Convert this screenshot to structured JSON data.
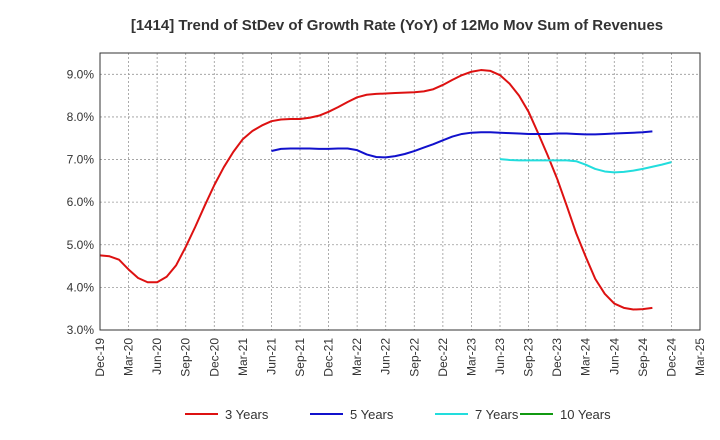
{
  "chart_data": {
    "type": "line",
    "title": "[1414]  Trend of StDev of Growth Rate (YoY) of 12Mo Mov Sum of Revenues",
    "xlabel": "",
    "ylabel": "",
    "ylim": [
      3.0,
      9.5
    ],
    "yticks": [
      3.0,
      4.0,
      5.0,
      6.0,
      7.0,
      8.0,
      9.0
    ],
    "ytick_labels": [
      "3.0%",
      "4.0%",
      "5.0%",
      "6.0%",
      "7.0%",
      "8.0%",
      "9.0%"
    ],
    "xticks": [
      "Dec-19",
      "Mar-20",
      "Jun-20",
      "Sep-20",
      "Dec-20",
      "Mar-21",
      "Jun-21",
      "Sep-21",
      "Dec-21",
      "Mar-22",
      "Jun-22",
      "Sep-22",
      "Dec-22",
      "Mar-23",
      "Jun-23",
      "Sep-23",
      "Dec-23",
      "Mar-24",
      "Jun-24",
      "Sep-24",
      "Dec-24",
      "Mar-25"
    ],
    "grid": true,
    "legend_position": "bottom",
    "series": [
      {
        "name": "3 Years",
        "color": "#dd1111",
        "start": 0,
        "values": [
          4.75,
          4.73,
          4.65,
          4.42,
          4.22,
          4.12,
          4.12,
          4.25,
          4.52,
          4.95,
          5.42,
          5.92,
          6.4,
          6.82,
          7.18,
          7.48,
          7.67,
          7.8,
          7.9,
          7.94,
          7.95,
          7.95,
          7.98,
          8.03,
          8.12,
          8.23,
          8.35,
          8.46,
          8.52,
          8.54,
          8.55,
          8.56,
          8.57,
          8.58,
          8.6,
          8.65,
          8.75,
          8.87,
          8.98,
          9.06,
          9.1,
          9.08,
          8.98,
          8.78,
          8.5,
          8.12,
          7.62,
          7.1,
          6.55,
          5.92,
          5.27,
          4.72,
          4.2,
          3.85,
          3.62,
          3.52,
          3.48,
          3.49,
          3.52
        ]
      },
      {
        "name": "5 Years",
        "color": "#1111cc",
        "start": 18,
        "values": [
          7.2,
          7.25,
          7.26,
          7.26,
          7.26,
          7.25,
          7.25,
          7.26,
          7.26,
          7.22,
          7.12,
          7.06,
          7.05,
          7.08,
          7.13,
          7.2,
          7.28,
          7.36,
          7.45,
          7.54,
          7.6,
          7.63,
          7.64,
          7.64,
          7.63,
          7.62,
          7.61,
          7.6,
          7.6,
          7.6,
          7.61,
          7.61,
          7.6,
          7.59,
          7.59,
          7.6,
          7.61,
          7.62,
          7.63,
          7.64,
          7.66
        ]
      },
      {
        "name": "7 Years",
        "color": "#22dddd",
        "start": 42,
        "values": [
          7.01,
          6.99,
          6.98,
          6.98,
          6.98,
          6.98,
          6.98,
          6.98,
          6.96,
          6.88,
          6.78,
          6.72,
          6.7,
          6.71,
          6.74,
          6.78,
          6.83,
          6.88,
          6.94
        ]
      },
      {
        "name": "10 Years",
        "color": "#119911",
        "start": 0,
        "values": []
      }
    ]
  }
}
